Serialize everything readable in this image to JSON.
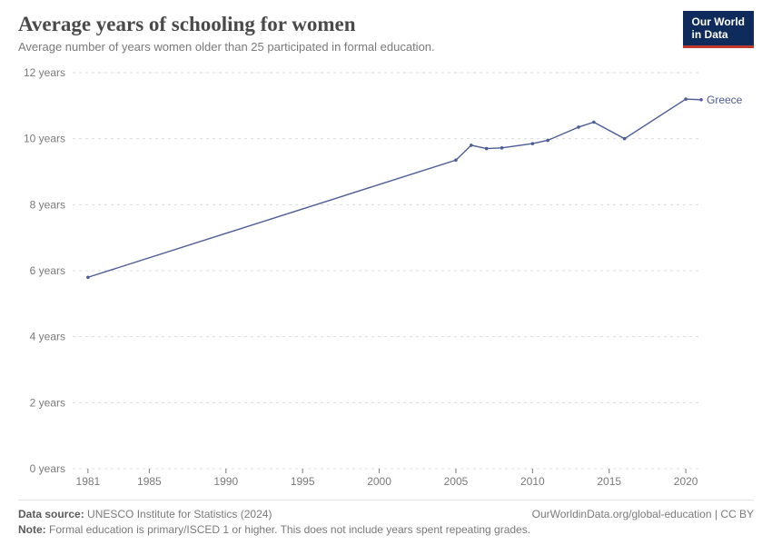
{
  "header": {
    "title": "Average years of schooling for women",
    "subtitle": "Average number of years women older than 25 participated in formal education.",
    "logo_line1": "Our World",
    "logo_line2": "in Data"
  },
  "chart": {
    "type": "line",
    "background_color": "#ffffff",
    "grid_color": "#dcdcdc",
    "axis_text_color": "#7a7a7a",
    "axis_fontsize": 12,
    "x": {
      "min": 1980,
      "max": 2021,
      "ticks": [
        1981,
        1985,
        1990,
        1995,
        2000,
        2005,
        2010,
        2015,
        2020
      ]
    },
    "y": {
      "min": 0,
      "max": 12,
      "ticks": [
        0,
        2,
        4,
        6,
        8,
        10,
        12
      ],
      "suffix": " years"
    },
    "series": [
      {
        "name": "Greece",
        "color": "#4c5c96",
        "line_width": 1.4,
        "marker_radius": 1.8,
        "points": [
          {
            "x": 1981,
            "y": 5.8
          },
          {
            "x": 2005,
            "y": 9.35
          },
          {
            "x": 2006,
            "y": 9.8
          },
          {
            "x": 2007,
            "y": 9.7
          },
          {
            "x": 2008,
            "y": 9.72
          },
          {
            "x": 2010,
            "y": 9.85
          },
          {
            "x": 2011,
            "y": 9.95
          },
          {
            "x": 2013,
            "y": 10.35
          },
          {
            "x": 2014,
            "y": 10.5
          },
          {
            "x": 2016,
            "y": 10.0
          },
          {
            "x": 2020,
            "y": 11.2
          },
          {
            "x": 2021,
            "y": 11.18
          }
        ]
      }
    ]
  },
  "footer": {
    "source_label": "Data source:",
    "source_value": "UNESCO Institute for Statistics (2024)",
    "attribution": "OurWorldinData.org/global-education | CC BY",
    "note_label": "Note:",
    "note_value": "Formal education is primary/ISCED 1 or higher. This does not include years spent repeating grades."
  }
}
